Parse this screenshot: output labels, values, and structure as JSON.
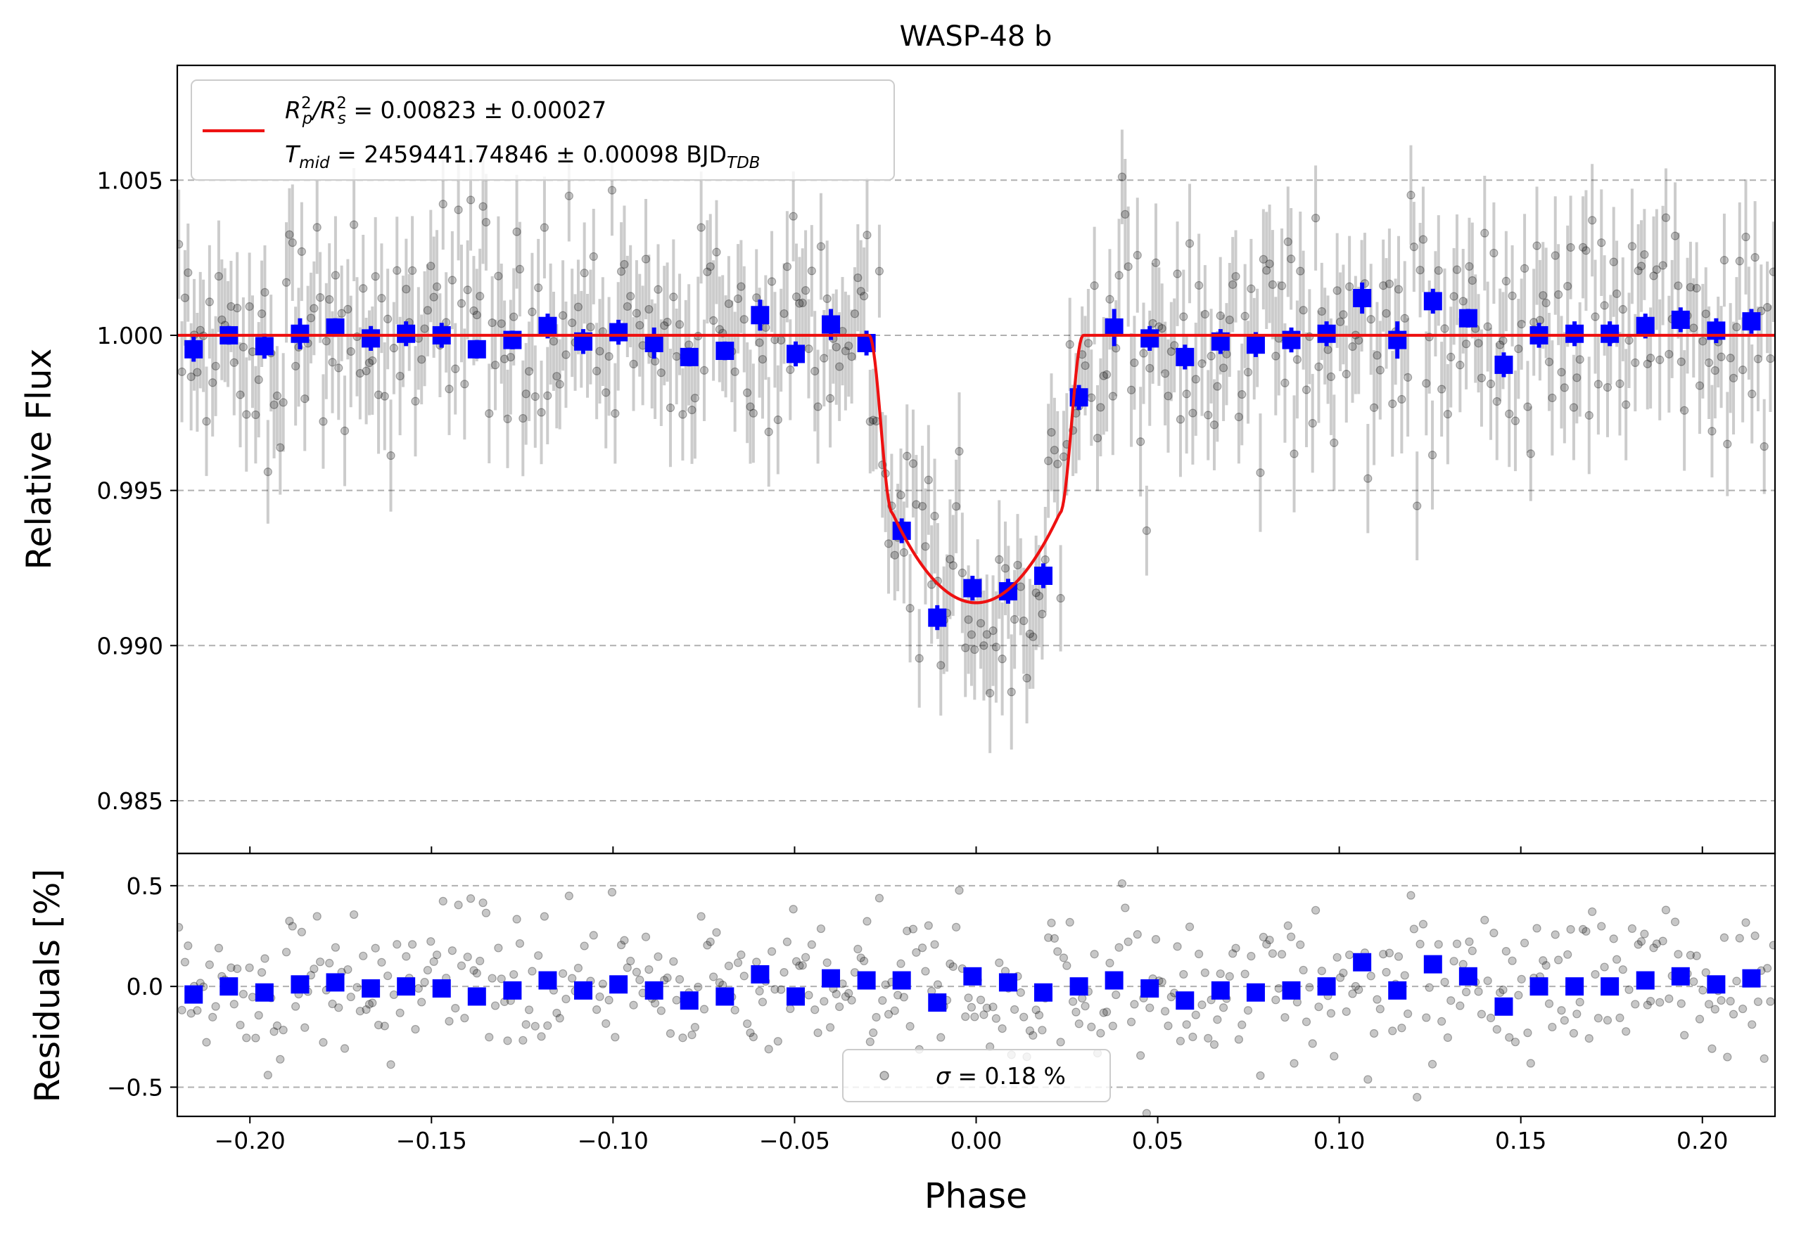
{
  "chart_data": {
    "type": "scatter",
    "title": "WASP-48 b",
    "xlabel": "Phase",
    "colors": {
      "raw": "#000000",
      "binned": "#0000ff",
      "model": "#ee1111",
      "grid": "#b0b0b0"
    },
    "top_panel": {
      "ylabel": "Relative Flux",
      "xlim": [
        -0.22,
        0.22
      ],
      "ylim": [
        0.9833,
        1.0087
      ],
      "yticks": [
        0.985,
        0.99,
        0.995,
        1.0,
        1.005
      ],
      "ytick_labels": [
        "0.985",
        "0.990",
        "0.995",
        "1.000",
        "1.005"
      ],
      "legend": {
        "line1": {
          "lhs": "R",
          "sup1": "2",
          "sub1": "p",
          "mid": "/R",
          "sup2": "2",
          "sub2": "s",
          "rhs": " = 0.00823 ± 0.00027"
        },
        "line2": {
          "lhs": "T",
          "sub1": "mid",
          "rhs": " = 2459441.74846 ± 0.00098 BJD",
          "sub2": "TDB"
        }
      },
      "transit_model": {
        "baseline": 1.0,
        "depth_center": 0.99138,
        "ingress_start": -0.0295,
        "full_start": -0.0225,
        "full_end": 0.0235,
        "egress_end": 0.0295,
        "limb_darkening": 0.55
      },
      "binned": {
        "x": [
          -0.2155,
          -0.2058,
          -0.196,
          -0.1862,
          -0.1765,
          -0.1667,
          -0.157,
          -0.1472,
          -0.1375,
          -0.1277,
          -0.118,
          -0.1082,
          -0.0985,
          -0.0887,
          -0.079,
          -0.0692,
          -0.0595,
          -0.0497,
          -0.04,
          -0.0302,
          -0.0205,
          -0.0107,
          -0.001,
          0.0088,
          0.0185,
          0.0283,
          0.038,
          0.0478,
          0.0575,
          0.0673,
          0.077,
          0.0868,
          0.0965,
          0.1063,
          0.116,
          0.1258,
          0.1355,
          0.1453,
          0.155,
          0.1648,
          0.1745,
          0.1843,
          0.194,
          0.2038,
          0.2135
        ],
        "y": [
          0.99955,
          1.0,
          0.99965,
          1.00005,
          1.00025,
          0.9999,
          1.00005,
          1.0,
          0.99955,
          0.99985,
          1.0003,
          0.9998,
          1.0001,
          0.99975,
          0.9993,
          0.9995,
          1.00065,
          0.9994,
          1.00035,
          0.99975,
          0.9937,
          0.9909,
          0.99185,
          0.99175,
          0.99225,
          0.998,
          1.00025,
          0.9999,
          0.9993,
          0.9998,
          0.9997,
          0.99985,
          1.00005,
          1.0012,
          0.99985,
          1.0011,
          1.00055,
          0.99905,
          1.0,
          1.00005,
          1.00005,
          1.0003,
          1.0005,
          1.00015,
          1.00045
        ],
        "err": [
          0.0004,
          0.0003,
          0.0004,
          0.0005,
          0.0003,
          0.0004,
          0.0004,
          0.0004,
          0.0003,
          0.0003,
          0.0004,
          0.0004,
          0.0004,
          0.0005,
          0.0003,
          0.0003,
          0.0005,
          0.0004,
          0.0005,
          0.0004,
          0.0004,
          0.0004,
          0.0004,
          0.0004,
          0.0004,
          0.0004,
          0.0006,
          0.0004,
          0.0004,
          0.0004,
          0.0004,
          0.0004,
          0.0004,
          0.0005,
          0.0006,
          0.0004,
          0.0003,
          0.0004,
          0.0004,
          0.0004,
          0.0004,
          0.0004,
          0.0004,
          0.0004,
          0.0004
        ]
      }
    },
    "bottom_panel": {
      "ylabel": "Residuals [%]",
      "ylim": [
        -0.645,
        0.66
      ],
      "yticks": [
        -0.5,
        0.0,
        0.5
      ],
      "ytick_labels": [
        "−0.5",
        "0.0",
        "0.5"
      ],
      "xticks": [
        -0.2,
        -0.15,
        -0.1,
        -0.05,
        0.0,
        0.05,
        0.1,
        0.15,
        0.2
      ],
      "xtick_labels": [
        "−0.20",
        "−0.15",
        "−0.10",
        "−0.05",
        "0.00",
        "0.05",
        "0.10",
        "0.15",
        "0.20"
      ],
      "legend": {
        "sigma_symbol": "σ",
        "sigma_text": " = 0.18 %"
      },
      "binned_residuals": {
        "y": [
          -0.04,
          0.0,
          -0.03,
          0.01,
          0.02,
          -0.01,
          0.0,
          -0.01,
          -0.05,
          -0.02,
          0.03,
          -0.02,
          0.01,
          -0.02,
          -0.07,
          -0.05,
          0.06,
          -0.05,
          0.04,
          0.03,
          0.03,
          -0.08,
          0.05,
          0.02,
          -0.03,
          0.0,
          0.03,
          -0.01,
          -0.07,
          -0.02,
          -0.03,
          -0.02,
          0.0,
          0.12,
          -0.02,
          0.11,
          0.05,
          -0.1,
          0.0,
          0.0,
          0.0,
          0.03,
          0.05,
          0.01,
          0.04
        ]
      }
    },
    "raw_points": {
      "count": 520,
      "scatter_pct": 0.18,
      "errorbar_pct": 0.17
    }
  }
}
